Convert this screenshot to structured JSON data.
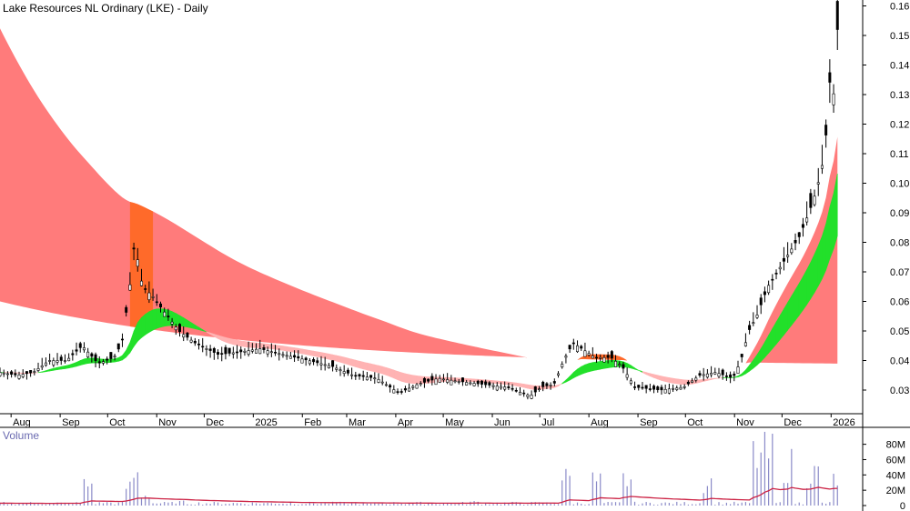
{
  "chart_data": {
    "type": "candlestick",
    "title": "Lake Resources NL Ordinary (LKE) - Daily",
    "volume_title": "Volume",
    "y_ticks": [
      "0.16",
      "0.15",
      "0.14",
      "0.13",
      "0.12",
      "0.11",
      "0.10",
      "0.09",
      "0.08",
      "0.07",
      "0.06",
      "0.05",
      "0.04",
      "0.03"
    ],
    "y_values": [
      0.16,
      0.15,
      0.14,
      0.13,
      0.12,
      0.11,
      0.1,
      0.09,
      0.08,
      0.07,
      0.06,
      0.05,
      0.04,
      0.03
    ],
    "ylim": [
      0.022,
      0.162
    ],
    "x_ticks": [
      "Aug",
      "Sep",
      "Oct",
      "Nov",
      "Dec",
      "2025",
      "Feb",
      "Mar",
      "Apr",
      "May",
      "Jun",
      "Jul",
      "Aug",
      "Sep",
      "Oct",
      "Nov",
      "Dec",
      "2026"
    ],
    "volume_ticks": [
      "80M",
      "60M",
      "40M",
      "20M",
      "0"
    ],
    "volume_values": [
      80,
      60,
      40,
      20,
      0
    ],
    "volume_ylim": [
      0,
      95
    ],
    "price_series": [
      {
        "date": "2024-07-25",
        "close": 0.036
      },
      {
        "date": "2024-08-05",
        "close": 0.035
      },
      {
        "date": "2024-08-15",
        "close": 0.036
      },
      {
        "date": "2024-08-25",
        "close": 0.04
      },
      {
        "date": "2024-09-05",
        "close": 0.04
      },
      {
        "date": "2024-09-15",
        "close": 0.045
      },
      {
        "date": "2024-09-25",
        "close": 0.039
      },
      {
        "date": "2024-10-05",
        "close": 0.041
      },
      {
        "date": "2024-10-10",
        "close": 0.046
      },
      {
        "date": "2024-10-15",
        "close": 0.065
      },
      {
        "date": "2024-10-18",
        "close": 0.08
      },
      {
        "date": "2024-10-23",
        "close": 0.065
      },
      {
        "date": "2024-10-29",
        "close": 0.062
      },
      {
        "date": "2024-11-05",
        "close": 0.057
      },
      {
        "date": "2024-11-15",
        "close": 0.05
      },
      {
        "date": "2024-11-25",
        "close": 0.046
      },
      {
        "date": "2024-12-10",
        "close": 0.042
      },
      {
        "date": "2024-12-25",
        "close": 0.043
      },
      {
        "date": "2025-01-05",
        "close": 0.044
      },
      {
        "date": "2025-01-20",
        "close": 0.042
      },
      {
        "date": "2025-02-05",
        "close": 0.04
      },
      {
        "date": "2025-02-20",
        "close": 0.038
      },
      {
        "date": "2025-03-05",
        "close": 0.035
      },
      {
        "date": "2025-03-20",
        "close": 0.034
      },
      {
        "date": "2025-04-03",
        "close": 0.029
      },
      {
        "date": "2025-04-15",
        "close": 0.032
      },
      {
        "date": "2025-04-28",
        "close": 0.034
      },
      {
        "date": "2025-05-10",
        "close": 0.033
      },
      {
        "date": "2025-05-25",
        "close": 0.032
      },
      {
        "date": "2025-06-10",
        "close": 0.031
      },
      {
        "date": "2025-06-25",
        "close": 0.028
      },
      {
        "date": "2025-07-02",
        "close": 0.031
      },
      {
        "date": "2025-07-10",
        "close": 0.032
      },
      {
        "date": "2025-07-16",
        "close": 0.04
      },
      {
        "date": "2025-07-22",
        "close": 0.046
      },
      {
        "date": "2025-08-05",
        "close": 0.041
      },
      {
        "date": "2025-08-15",
        "close": 0.041
      },
      {
        "date": "2025-08-22",
        "close": 0.038
      },
      {
        "date": "2025-08-30",
        "close": 0.031
      },
      {
        "date": "2025-09-15",
        "close": 0.03
      },
      {
        "date": "2025-09-30",
        "close": 0.031
      },
      {
        "date": "2025-10-10",
        "close": 0.035
      },
      {
        "date": "2025-10-20",
        "close": 0.036
      },
      {
        "date": "2025-10-31",
        "close": 0.034
      },
      {
        "date": "2025-11-05",
        "close": 0.04
      },
      {
        "date": "2025-11-10",
        "close": 0.05
      },
      {
        "date": "2025-11-15",
        "close": 0.055
      },
      {
        "date": "2025-11-22",
        "close": 0.065
      },
      {
        "date": "2025-11-28",
        "close": 0.07
      },
      {
        "date": "2025-12-05",
        "close": 0.076
      },
      {
        "date": "2025-12-12",
        "close": 0.082
      },
      {
        "date": "2025-12-18",
        "close": 0.09
      },
      {
        "date": "2025-12-23",
        "close": 0.098
      },
      {
        "date": "2025-12-28",
        "close": 0.11
      },
      {
        "date": "2025-12-31",
        "close": 0.135
      },
      {
        "date": "2026-01-02",
        "close": 0.125
      },
      {
        "date": "2026-01-05",
        "close": 0.152
      }
    ],
    "volume_series": [
      {
        "date": "2024-08-01",
        "volume": 3
      },
      {
        "date": "2024-09-05",
        "volume": 4
      },
      {
        "date": "2024-09-18",
        "volume": 36
      },
      {
        "date": "2024-10-01",
        "volume": 5
      },
      {
        "date": "2024-10-15",
        "volume": 32
      },
      {
        "date": "2024-10-19",
        "volume": 52
      },
      {
        "date": "2024-10-25",
        "volume": 18
      },
      {
        "date": "2024-11-15",
        "volume": 6
      },
      {
        "date": "2025-01-15",
        "volume": 4
      },
      {
        "date": "2025-03-15",
        "volume": 3
      },
      {
        "date": "2025-05-20",
        "volume": 6
      },
      {
        "date": "2025-07-18",
        "volume": 47
      },
      {
        "date": "2025-08-05",
        "volume": 43
      },
      {
        "date": "2025-08-25",
        "volume": 45
      },
      {
        "date": "2025-10-15",
        "volume": 40
      },
      {
        "date": "2025-11-15",
        "volume": 85
      },
      {
        "date": "2025-11-22",
        "volume": 88
      },
      {
        "date": "2025-12-05",
        "volume": 70
      },
      {
        "date": "2025-12-20",
        "volume": 55
      },
      {
        "date": "2026-01-05",
        "volume": 45
      }
    ],
    "grid": false,
    "legend": "none",
    "colors": {
      "ribbon_red": "#ff7b7b",
      "ribbon_orange": "#ff6a2a",
      "ribbon_pink": "#ffb3b3",
      "ribbon_green": "#22e02a",
      "volume_bar": "#8a8ac8",
      "volume_avg": "#cc2244",
      "candle": "#000000",
      "title_volume": "#6a6ab0"
    }
  }
}
